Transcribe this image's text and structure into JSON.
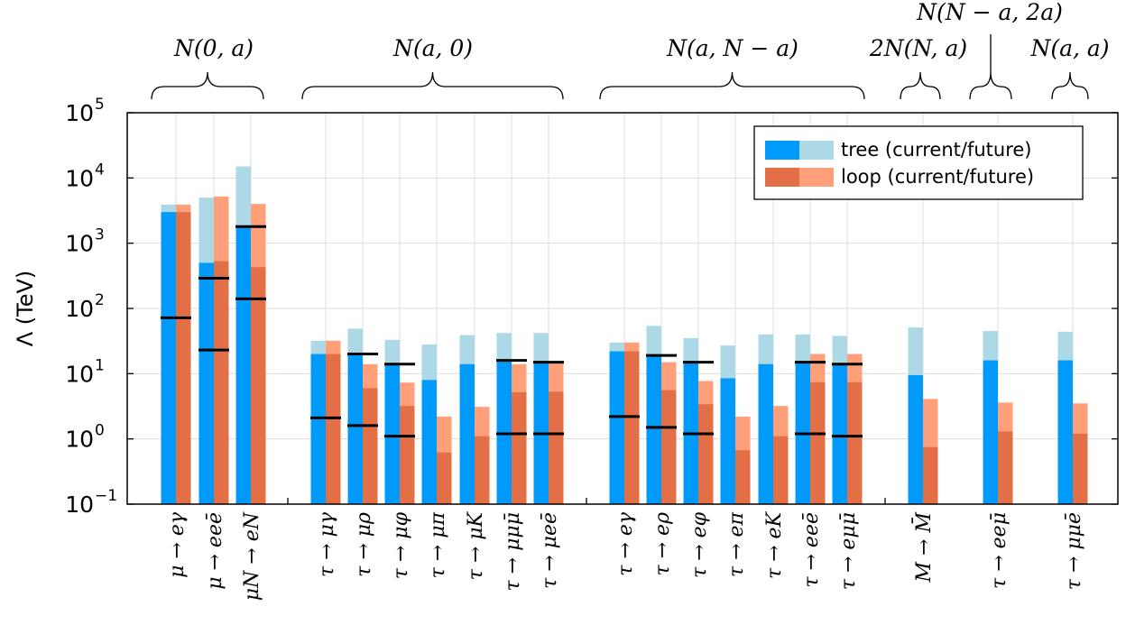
{
  "chart_data": {
    "type": "bar",
    "ylabel": "Λ (TeV)",
    "yscale": "log",
    "ylim": [
      0.1,
      100000
    ],
    "y_ticks": [
      {
        "value": 0.1,
        "base": "10",
        "exp": "−1"
      },
      {
        "value": 1,
        "base": "10",
        "exp": "0"
      },
      {
        "value": 10,
        "base": "10",
        "exp": "1"
      },
      {
        "value": 100,
        "base": "10",
        "exp": "2"
      },
      {
        "value": 1000,
        "base": "10",
        "exp": "3"
      },
      {
        "value": 10000,
        "base": "10",
        "exp": "4"
      },
      {
        "value": 100000,
        "base": "10",
        "exp": "5"
      }
    ],
    "grid": true,
    "legend_position": "top-right",
    "legend": [
      {
        "label": "tree (current/future)",
        "colors": [
          "#009AFA",
          "#ADD8E6"
        ]
      },
      {
        "label": "loop (current/future)",
        "colors": [
          "#E26F46",
          "#FFA07A"
        ]
      }
    ],
    "groups": [
      {
        "label": "N(0,a)",
        "label_html": "N(0, a)",
        "processes": [
          "μ → eγ",
          "μ → eeē",
          "μN → eN"
        ]
      },
      {
        "label": "N(a,0)",
        "label_html": "N(a, 0)",
        "processes": [
          "τ → μγ",
          "τ → μρ",
          "τ → μφ",
          "τ → μπ",
          "τ → μK",
          "τ → μμμ̄",
          "τ → μeē"
        ]
      },
      {
        "label": "N(a,N−a)",
        "label_html": "N(a, N − a)",
        "processes": [
          "τ → eγ",
          "τ → eρ",
          "τ → eφ",
          "τ → eπ",
          "τ → eK",
          "τ → eeē",
          "τ → eμμ̄"
        ]
      },
      {
        "label": "2N(N,a)",
        "label_html": "2N(N, a)",
        "processes": [
          "M → M̄"
        ]
      },
      {
        "label": "N(N−a,2a)",
        "label_html": "N(N − a, 2a)",
        "processes": [
          "τ → eeμ̄"
        ]
      },
      {
        "label": "N(a,a)",
        "label_html": "N(a, a)",
        "processes": [
          "τ → μμē"
        ]
      }
    ],
    "categories": [
      "μ → eγ",
      "μ → eeē",
      "μN → eN",
      "τ → μγ",
      "τ → μρ",
      "τ → μφ",
      "τ → μπ",
      "τ → μK",
      "τ → μμμ̄",
      "τ → μeē",
      "τ → eγ",
      "τ → eρ",
      "τ → eφ",
      "τ → eπ",
      "τ → eK",
      "τ → eeē",
      "τ → eμμ̄",
      "M → M̄",
      "τ → eeμ̄",
      "τ → μμē"
    ],
    "series": [
      {
        "name": "tree current",
        "values": [
          3000,
          500,
          1800,
          20,
          20,
          14,
          8,
          14,
          16,
          15,
          22,
          19,
          15,
          8.5,
          14,
          15,
          14,
          9.5,
          16,
          16
        ]
      },
      {
        "name": "tree future",
        "values": [
          3900,
          5000,
          15000,
          32,
          49,
          33,
          28,
          39,
          42,
          42,
          30,
          54,
          35,
          27,
          40,
          40,
          38,
          51,
          45,
          44
        ]
      },
      {
        "name": "loop current",
        "values": [
          3000,
          530,
          430,
          20,
          6,
          3.2,
          0.62,
          1.1,
          5.2,
          5.3,
          22,
          5.6,
          3.4,
          0.67,
          1.1,
          7.4,
          7.4,
          0.75,
          1.3,
          1.2
        ]
      },
      {
        "name": "loop future",
        "values": [
          3900,
          5200,
          4000,
          32,
          14,
          7.3,
          2.2,
          3.1,
          14,
          15,
          30,
          15,
          7.7,
          2.2,
          3.2,
          20,
          20,
          4.1,
          3.6,
          3.5
        ]
      },
      {
        "name": "reference",
        "values": [
          72,
          23,
          140,
          2.1,
          1.6,
          1.1,
          null,
          null,
          1.2,
          1.2,
          2.2,
          1.5,
          1.2,
          null,
          null,
          1.2,
          1.1,
          null,
          null,
          null
        ]
      },
      {
        "name": "reference tree",
        "values": [
          null,
          290,
          1800,
          null,
          20,
          14,
          null,
          null,
          16,
          15,
          null,
          19,
          15,
          null,
          null,
          15,
          14,
          null,
          null,
          null
        ]
      }
    ]
  }
}
